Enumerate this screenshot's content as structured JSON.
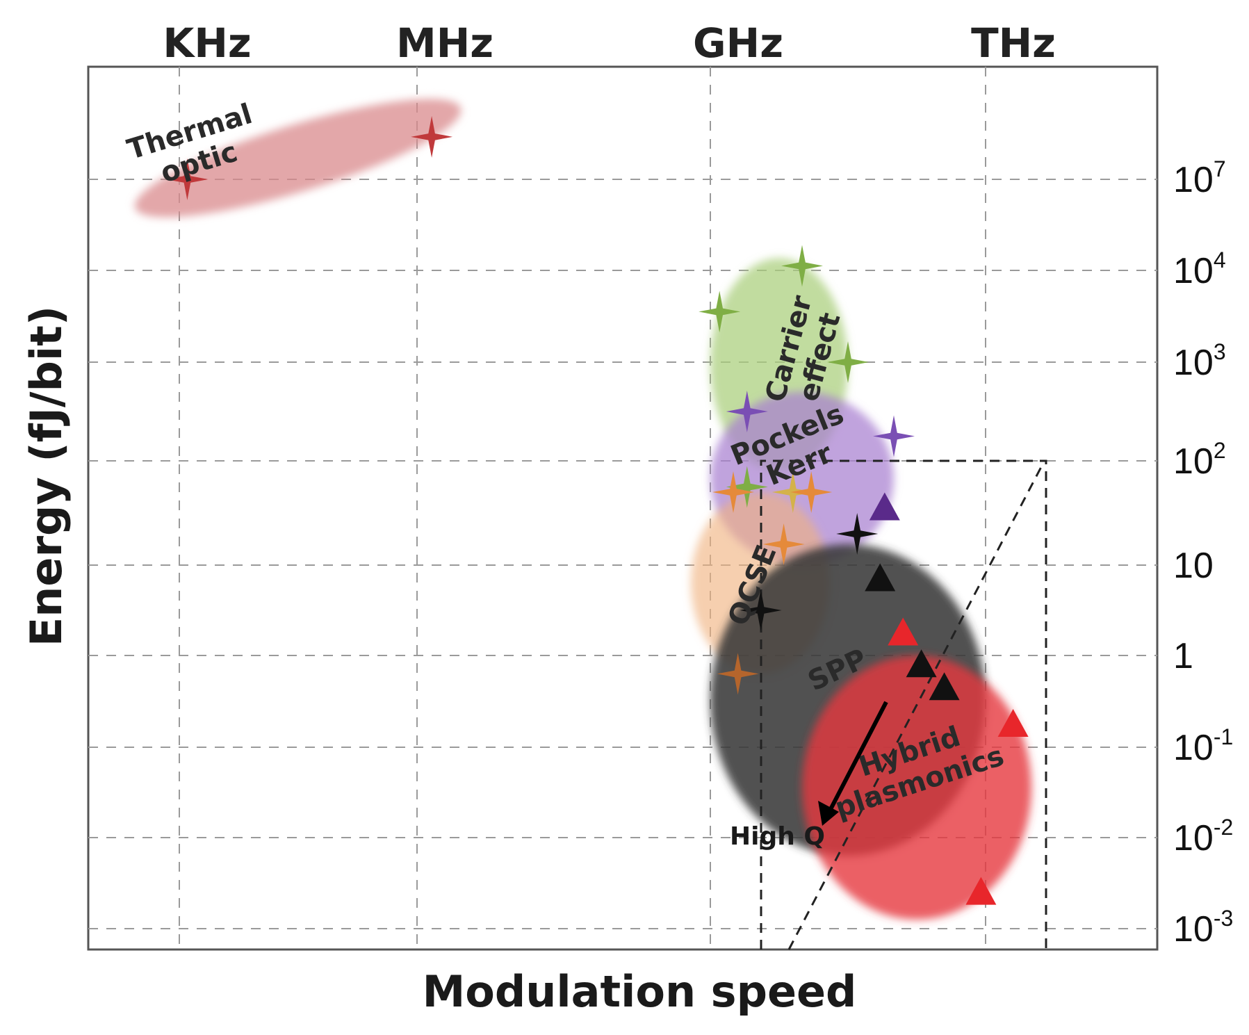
{
  "chart_data": {
    "type": "scatter",
    "title": "",
    "xlabel": "Modulation speed",
    "ylabel": "Energy (fJ/bit)",
    "x_scale": "log-frequency",
    "y_scale": "log",
    "x_ticks": [
      "KHz",
      "MHz",
      "GHz",
      "THz"
    ],
    "x_tick_values_hz": [
      1000,
      1000000,
      1000000000,
      1000000000000
    ],
    "y_ticks": [
      {
        "base": "10",
        "exp": "7",
        "value": 10000000
      },
      {
        "base": "10",
        "exp": "4",
        "value": 10000
      },
      {
        "base": "10",
        "exp": "3",
        "value": 1000
      },
      {
        "base": "10",
        "exp": "2",
        "value": 100
      },
      {
        "base": "10",
        "exp": "",
        "value": 10
      },
      {
        "base": "1",
        "exp": "",
        "value": 1
      },
      {
        "base": "10",
        "exp": "-1",
        "value": 0.1
      },
      {
        "base": "10",
        "exp": "-2",
        "value": 0.01
      },
      {
        "base": "10",
        "exp": "-3",
        "value": 0.001
      }
    ],
    "grid": true,
    "regions": [
      {
        "name": "Thermal optic",
        "lines": [
          "Thermal",
          "optic"
        ],
        "color": "#d98a8c",
        "x_range_log10_hz": [
          2.5,
          6.4
        ],
        "y_range_log10": [
          6.8,
          8.6
        ]
      },
      {
        "name": "Carrier effect",
        "lines": [
          "Carrier",
          "effect"
        ],
        "color": "#a9cf7a",
        "x_range_log10_hz": [
          9.0,
          10.5
        ],
        "y_range_log10": [
          1.9,
          4.4
        ]
      },
      {
        "name": "Pockels Kerr",
        "lines": [
          "Pockels",
          "Kerr"
        ],
        "color": "#a77fd0",
        "x_range_log10_hz": [
          9.0,
          11.0
        ],
        "y_range_log10": [
          1.0,
          2.7
        ]
      },
      {
        "name": "QCSE",
        "lines": [
          "QCSE"
        ],
        "color": "#f0b27e",
        "x_range_log10_hz": [
          8.8,
          10.3
        ],
        "y_range_log10": [
          -0.2,
          1.7
        ]
      },
      {
        "name": "SPP",
        "lines": [
          "SPP"
        ],
        "color": "#3a3a3a",
        "x_range_log10_hz": [
          9.0,
          12.0
        ],
        "y_range_log10": [
          -2.2,
          1.2
        ]
      },
      {
        "name": "Hybrid plasmonics",
        "lines": [
          "Hybrid",
          "plasmonics"
        ],
        "color": "#e63a3f",
        "x_range_log10_hz": [
          10.0,
          12.5
        ],
        "y_range_log10": [
          -2.9,
          0.0
        ]
      }
    ],
    "series": [
      {
        "name": "Thermal optic",
        "marker": "star",
        "color": "#c0393b",
        "points": [
          {
            "x": 3.1,
            "y": 7.0
          },
          {
            "x": 6.15,
            "y": 8.4
          }
        ]
      },
      {
        "name": "Carrier effect",
        "marker": "star",
        "color": "#7fae45",
        "points": [
          {
            "x": 9.1,
            "y": 3.55
          },
          {
            "x": 10.0,
            "y": 4.15
          },
          {
            "x": 10.5,
            "y": 3.0
          },
          {
            "x": 9.4,
            "y": 1.75
          }
        ]
      },
      {
        "name": "Pockels Kerr",
        "marker": "star",
        "color": "#7a4fb4",
        "points": [
          {
            "x": 9.4,
            "y": 2.5
          },
          {
            "x": 11.0,
            "y": 2.25
          }
        ]
      },
      {
        "name": "Pockels Kerr",
        "marker": "star",
        "color": "#d4b24a",
        "points": [
          {
            "x": 9.9,
            "y": 1.7
          }
        ]
      },
      {
        "name": "QCSE",
        "marker": "star",
        "color": "#e58a3a",
        "points": [
          {
            "x": 9.25,
            "y": 1.7
          },
          {
            "x": 10.1,
            "y": 1.7
          },
          {
            "x": 9.8,
            "y": 1.2
          }
        ]
      },
      {
        "name": "QCSE",
        "marker": "star",
        "color": "#b5652c",
        "points": [
          {
            "x": 9.3,
            "y": -0.2
          }
        ]
      },
      {
        "name": "SPP",
        "marker": "star",
        "color": "#111111",
        "points": [
          {
            "x": 10.6,
            "y": 1.3
          },
          {
            "x": 9.55,
            "y": 0.5
          }
        ]
      },
      {
        "name": "SPP",
        "marker": "triangle",
        "color": "#5a2a8a",
        "points": [
          {
            "x": 10.9,
            "y": 1.55
          }
        ]
      },
      {
        "name": "SPP",
        "marker": "triangle",
        "color": "#111111",
        "points": [
          {
            "x": 10.85,
            "y": 0.85
          },
          {
            "x": 11.3,
            "y": -0.1
          },
          {
            "x": 11.55,
            "y": -0.35
          }
        ]
      },
      {
        "name": "Hybrid plasmonics",
        "marker": "triangle",
        "color": "#e8262b",
        "points": [
          {
            "x": 11.1,
            "y": 0.25
          },
          {
            "x": 12.3,
            "y": -0.75
          },
          {
            "x": 11.95,
            "y": -2.6
          }
        ]
      }
    ],
    "annotations": [
      {
        "text": "High Q",
        "arrow": true,
        "x_log10_hz": 10.3,
        "y_log10": -1.9
      }
    ]
  }
}
